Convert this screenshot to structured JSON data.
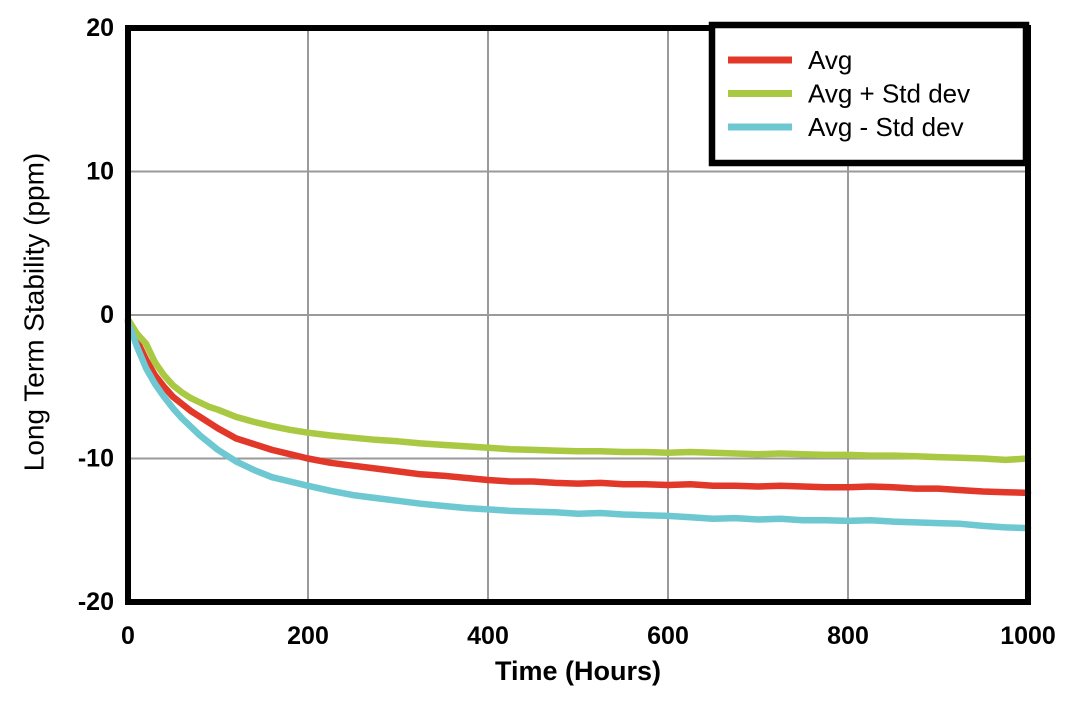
{
  "figure": {
    "background_color": "#ffffff",
    "axis_color": "#000000",
    "grid_color": "#9a9a9a"
  },
  "chart_data": {
    "type": "line",
    "title": "",
    "xlabel": "Time (Hours)",
    "ylabel": "Long Term Stability (ppm)",
    "xlim": [
      0,
      1000
    ],
    "ylim": [
      -20,
      20
    ],
    "xticks": [
      0,
      200,
      400,
      600,
      800,
      1000
    ],
    "yticks": [
      20,
      10,
      0,
      -10,
      -20
    ],
    "grid": "on",
    "legend_position": "top-right",
    "x": [
      0,
      10,
      20,
      30,
      40,
      50,
      60,
      70,
      80,
      90,
      100,
      120,
      140,
      160,
      180,
      200,
      225,
      250,
      275,
      300,
      325,
      350,
      375,
      400,
      425,
      450,
      475,
      500,
      525,
      550,
      575,
      600,
      625,
      650,
      675,
      700,
      725,
      750,
      775,
      800,
      825,
      850,
      875,
      900,
      925,
      950,
      975,
      1000
    ],
    "series": [
      {
        "name": "Avg",
        "color": "#e2382a",
        "values": [
          -0.4,
          -1.8,
          -3.1,
          -4.2,
          -5.0,
          -5.7,
          -6.2,
          -6.7,
          -7.1,
          -7.5,
          -7.9,
          -8.6,
          -9.0,
          -9.4,
          -9.7,
          -10.0,
          -10.3,
          -10.5,
          -10.7,
          -10.9,
          -11.1,
          -11.2,
          -11.35,
          -11.5,
          -11.6,
          -11.6,
          -11.7,
          -11.75,
          -11.7,
          -11.8,
          -11.8,
          -11.85,
          -11.8,
          -11.9,
          -11.9,
          -11.95,
          -11.9,
          -11.95,
          -12.0,
          -12.0,
          -11.95,
          -12.0,
          -12.1,
          -12.1,
          -12.2,
          -12.3,
          -12.35,
          -12.4
        ]
      },
      {
        "name": "Avg + Std dev",
        "color": "#a9c943",
        "values": [
          -0.3,
          -1.3,
          -2.0,
          -3.3,
          -4.2,
          -4.9,
          -5.4,
          -5.8,
          -6.1,
          -6.4,
          -6.6,
          -7.1,
          -7.45,
          -7.75,
          -8.0,
          -8.2,
          -8.4,
          -8.55,
          -8.7,
          -8.8,
          -8.95,
          -9.05,
          -9.15,
          -9.25,
          -9.35,
          -9.4,
          -9.45,
          -9.5,
          -9.5,
          -9.55,
          -9.55,
          -9.6,
          -9.55,
          -9.6,
          -9.65,
          -9.7,
          -9.65,
          -9.7,
          -9.75,
          -9.75,
          -9.8,
          -9.8,
          -9.85,
          -9.9,
          -9.95,
          -10.0,
          -10.1,
          -10.0
        ]
      },
      {
        "name": "Avg - Std dev",
        "color": "#6ec8d2",
        "values": [
          -0.5,
          -2.2,
          -3.7,
          -4.8,
          -5.7,
          -6.5,
          -7.2,
          -7.8,
          -8.4,
          -8.9,
          -9.4,
          -10.2,
          -10.8,
          -11.3,
          -11.6,
          -11.9,
          -12.25,
          -12.55,
          -12.75,
          -12.95,
          -13.15,
          -13.3,
          -13.45,
          -13.55,
          -13.65,
          -13.7,
          -13.75,
          -13.85,
          -13.8,
          -13.9,
          -13.95,
          -14.0,
          -14.1,
          -14.2,
          -14.15,
          -14.25,
          -14.2,
          -14.3,
          -14.3,
          -14.35,
          -14.3,
          -14.4,
          -14.45,
          -14.5,
          -14.55,
          -14.7,
          -14.8,
          -14.85
        ]
      }
    ]
  }
}
